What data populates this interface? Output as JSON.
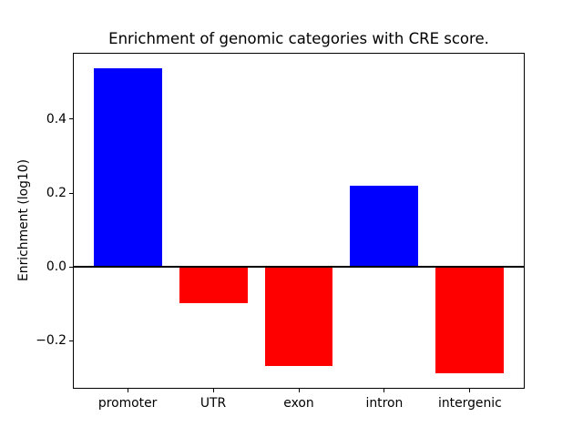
{
  "chart_data": {
    "type": "bar",
    "title": "Enrichment of genomic categories with CRE score.",
    "xlabel": "",
    "ylabel": "Enrichment (log10)",
    "categories": [
      "promoter",
      "UTR",
      "exon",
      "intron",
      "intergenic"
    ],
    "values": [
      0.54,
      -0.1,
      -0.27,
      0.22,
      -0.29
    ],
    "bar_colors": [
      "#0000ff",
      "#ff0000",
      "#ff0000",
      "#0000ff",
      "#ff0000"
    ],
    "positive_color": "#0000ff",
    "negative_color": "#ff0000",
    "ylim": [
      -0.33,
      0.58
    ],
    "xlim": [
      -0.64,
      4.64
    ],
    "bar_width": 0.8,
    "yticks": [
      0.4,
      0.2,
      0.0,
      -0.2
    ],
    "ytick_labels": [
      "0.4",
      "0.2",
      "0.0",
      "−0.2"
    ],
    "zero_line": true,
    "grid": false,
    "legend_position": "none",
    "background_color": "#ffffff",
    "axis_color": "#000000"
  }
}
